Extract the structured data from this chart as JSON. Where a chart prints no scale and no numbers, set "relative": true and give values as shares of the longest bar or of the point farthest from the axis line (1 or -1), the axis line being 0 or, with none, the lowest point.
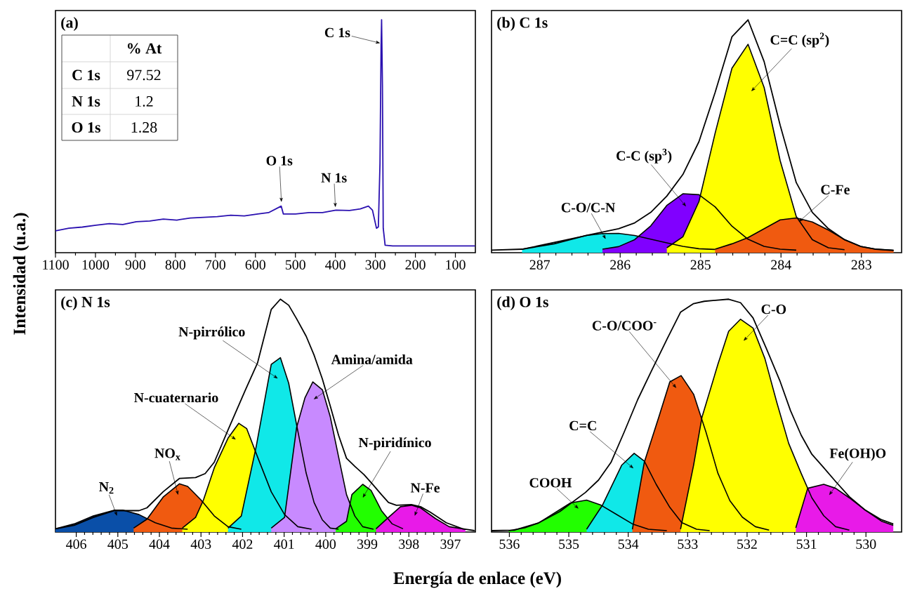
{
  "chart_data": [
    {
      "type": "line",
      "title": "(a)",
      "ylabel": "Intensidad (u.a.)",
      "relative": true,
      "xlim": [
        1100,
        50
      ],
      "xticks": [
        1100,
        1000,
        900,
        800,
        700,
        600,
        500,
        400,
        300,
        200,
        100
      ],
      "series": [
        {
          "color": "#2a10b0",
          "x": [
            1100,
            1066.5,
            1032.8,
            999.0,
            965.3,
            931.6,
            897.8,
            864.1,
            830.3,
            796.6,
            762.9,
            729.1,
            695.4,
            661.6,
            627.9,
            594.2,
            567.2,
            535.5,
            530.1,
            499.7,
            466.0,
            432.2,
            398.5,
            364.8,
            337.8,
            317.5,
            307.4,
            297.3,
            292.6,
            288.5,
            285.8,
            284.5,
            282.4,
            280.4,
            275.7,
            256.8,
            196.0,
            128.6,
            51.0
          ],
          "values": [
            0.094,
            0.105,
            0.11,
            0.118,
            0.125,
            0.121,
            0.133,
            0.136,
            0.144,
            0.14,
            0.149,
            0.152,
            0.155,
            0.161,
            0.158,
            0.166,
            0.172,
            0.2,
            0.166,
            0.166,
            0.172,
            0.172,
            0.183,
            0.181,
            0.188,
            0.2,
            0.183,
            0.105,
            0.111,
            0.384,
            0.887,
            1.0,
            0.72,
            0.105,
            0.032,
            0.029,
            0.029,
            0.029,
            0.029
          ]
        }
      ],
      "annotations": [
        "C 1s",
        "O 1s",
        "N 1s"
      ]
    },
    {
      "type": "other",
      "title": "% At",
      "categories": [
        "C 1s",
        "N 1s",
        "O 1s"
      ],
      "values": [
        97.52,
        1.2,
        1.28
      ],
      "data_labels": true
    },
    {
      "type": "area",
      "title": "(b) C 1s",
      "relative": true,
      "xlim": [
        287.6,
        282.5
      ],
      "xticks": [
        287,
        286,
        285,
        284,
        283
      ],
      "series": [
        {
          "color": "#10e8e8",
          "x": [
            287.22,
            286.82,
            286.42,
            286.22,
            286.02,
            285.82,
            285.62,
            285.42,
            285.22,
            285.02,
            284.82
          ],
          "values": [
            0.015,
            0.044,
            0.074,
            0.082,
            0.083,
            0.074,
            0.058,
            0.042,
            0.027,
            0.017,
            0.014
          ]
        },
        {
          "color": "#8000ff",
          "x": [
            286.22,
            286.02,
            285.82,
            285.62,
            285.42,
            285.22,
            285.02,
            284.82,
            284.61,
            284.41,
            284.21,
            284.01,
            283.81
          ],
          "values": [
            0.015,
            0.026,
            0.056,
            0.115,
            0.203,
            0.253,
            0.249,
            0.197,
            0.114,
            0.058,
            0.027,
            0.015,
            0.011
          ]
        },
        {
          "color": "#ffff00",
          "x": [
            285.42,
            285.22,
            285.02,
            284.82,
            284.61,
            284.41,
            284.21,
            284.01,
            283.81,
            283.61,
            283.41,
            283.21
          ],
          "values": [
            0.021,
            0.068,
            0.22,
            0.512,
            0.792,
            0.895,
            0.71,
            0.395,
            0.155,
            0.056,
            0.021,
            0.013
          ]
        },
        {
          "color": "#f05a10",
          "x": [
            284.82,
            284.61,
            284.41,
            284.21,
            284.01,
            283.81,
            283.61,
            283.41,
            283.21,
            283.01,
            282.82,
            282.6
          ],
          "values": [
            0.015,
            0.038,
            0.065,
            0.103,
            0.141,
            0.149,
            0.132,
            0.097,
            0.056,
            0.027,
            0.015,
            0.011
          ]
        },
        {
          "type": "line",
          "color": "#000000",
          "x": [
            287.6,
            287.22,
            286.82,
            286.42,
            286.02,
            285.82,
            285.62,
            285.42,
            285.22,
            285.02,
            284.82,
            284.61,
            284.41,
            284.21,
            284.01,
            283.81,
            283.61,
            283.41,
            283.21,
            283.01,
            282.82,
            282.6
          ],
          "values": [
            0.011,
            0.015,
            0.038,
            0.074,
            0.103,
            0.128,
            0.173,
            0.243,
            0.336,
            0.477,
            0.687,
            0.927,
            1.0,
            0.821,
            0.547,
            0.301,
            0.173,
            0.103,
            0.056,
            0.027,
            0.015,
            0.009
          ]
        }
      ],
      "annotations": [
        "C-O/C-N",
        "C-C (sp$^{3}$)",
        "C=C (sp$^{2}$)",
        "C-Fe"
      ]
    },
    {
      "type": "area",
      "title": "(c) N 1s",
      "xlabel": "Energía de enlace (eV)",
      "relative": true,
      "xlim": [
        406.5,
        396.4
      ],
      "xticks": [
        406,
        405,
        404,
        403,
        402,
        401,
        400,
        399,
        398,
        397
      ],
      "series": [
        {
          "color": "#0a4fa8",
          "x": [
            406.5,
            406.05,
            405.59,
            405.08,
            404.88,
            404.49,
            404.1,
            403.71,
            403.32
          ],
          "values": [
            0.014,
            0.035,
            0.069,
            0.094,
            0.094,
            0.075,
            0.04,
            0.017,
            0.012
          ]
        },
        {
          "color": "#f05a10",
          "x": [
            404.62,
            404.3,
            403.91,
            403.52,
            403.32,
            403.0,
            402.68,
            402.35,
            402.03
          ],
          "values": [
            0.017,
            0.055,
            0.15,
            0.207,
            0.196,
            0.138,
            0.069,
            0.023,
            0.012
          ]
        },
        {
          "color": "#ffff00",
          "x": [
            403.45,
            403.13,
            402.94,
            402.68,
            402.35,
            402.09,
            401.9,
            401.64,
            401.31,
            400.99,
            400.67,
            400.34
          ],
          "values": [
            0.017,
            0.063,
            0.138,
            0.276,
            0.403,
            0.467,
            0.444,
            0.323,
            0.173,
            0.075,
            0.023,
            0.012
          ]
        },
        {
          "color": "#10e8e8",
          "x": [
            402.35,
            402.03,
            401.67,
            401.31,
            401.09,
            400.89,
            400.7,
            400.47,
            400.28,
            400.08,
            399.89,
            399.69
          ],
          "values": [
            0.017,
            0.069,
            0.369,
            0.72,
            0.749,
            0.639,
            0.461,
            0.253,
            0.127,
            0.052,
            0.017,
            0.012
          ]
        },
        {
          "color": "#c88aff",
          "x": [
            401.31,
            400.99,
            400.7,
            400.5,
            400.31,
            400.08,
            399.89,
            399.69,
            399.5,
            399.3,
            399.11,
            398.85
          ],
          "values": [
            0.017,
            0.063,
            0.449,
            0.576,
            0.645,
            0.611,
            0.495,
            0.323,
            0.161,
            0.069,
            0.023,
            0.012
          ]
        },
        {
          "color": "#22ff00",
          "x": [
            399.76,
            399.5,
            399.37,
            399.11,
            398.91,
            398.66,
            398.4,
            398.14
          ],
          "values": [
            0.014,
            0.046,
            0.161,
            0.205,
            0.179,
            0.092,
            0.035,
            0.014
          ]
        },
        {
          "color": "#e81ae8",
          "x": [
            398.79,
            398.49,
            398.2,
            397.94,
            397.72,
            397.36,
            397.03,
            396.64
          ],
          "values": [
            0.014,
            0.063,
            0.109,
            0.115,
            0.104,
            0.058,
            0.023,
            0.012
          ]
        },
        {
          "type": "line",
          "color": "#000000",
          "x": [
            406.5,
            406.05,
            405.59,
            405.08,
            404.49,
            404.3,
            403.91,
            403.52,
            403.13,
            402.9,
            402.68,
            402.35,
            401.93,
            401.64,
            401.31,
            401.09,
            400.89,
            400.7,
            400.47,
            400.28,
            400.08,
            399.89,
            399.69,
            399.5,
            399.3,
            399.08,
            398.88,
            398.66,
            398.49,
            398.3,
            397.94,
            397.72,
            397.49,
            397.1,
            396.71,
            396.42
          ],
          "values": [
            0.014,
            0.029,
            0.063,
            0.092,
            0.092,
            0.104,
            0.173,
            0.23,
            0.234,
            0.251,
            0.3,
            0.438,
            0.611,
            0.726,
            0.956,
            1.0,
            0.974,
            0.916,
            0.841,
            0.76,
            0.657,
            0.541,
            0.415,
            0.317,
            0.282,
            0.247,
            0.207,
            0.161,
            0.127,
            0.115,
            0.118,
            0.109,
            0.086,
            0.04,
            0.014,
            0.006
          ]
        }
      ],
      "annotations": [
        "N$_{2}$",
        "NO$_{x}$",
        "N-cuaternario",
        "N-pirrólico",
        "Amina/amida",
        "N-piridínico",
        "N-Fe"
      ]
    },
    {
      "type": "area",
      "title": "(d) O 1s",
      "relative": true,
      "xlim": [
        536.3,
        529.4
      ],
      "xticks": [
        536,
        535,
        534,
        533,
        532,
        531,
        530
      ],
      "series": [
        {
          "color": "#22ff00",
          "x": [
            536.01,
            535.74,
            535.51,
            535.24,
            534.97,
            534.7,
            534.47,
            534.2,
            533.93,
            533.66,
            533.35
          ],
          "values": [
            0.006,
            0.018,
            0.039,
            0.082,
            0.125,
            0.137,
            0.117,
            0.076,
            0.035,
            0.012,
            0.006
          ]
        },
        {
          "color": "#10e8e8",
          "x": [
            534.7,
            534.43,
            534.11,
            533.9,
            533.73,
            533.53,
            533.3,
            533.1,
            532.85,
            532.63
          ],
          "values": [
            0.012,
            0.117,
            0.287,
            0.338,
            0.305,
            0.205,
            0.106,
            0.041,
            0.012,
            0.006
          ]
        },
        {
          "color": "#f05a10",
          "x": [
            533.93,
            533.73,
            533.48,
            533.3,
            533.11,
            532.9,
            532.69,
            532.49,
            532.29,
            532.08,
            531.86,
            531.63
          ],
          "values": [
            0.012,
            0.299,
            0.498,
            0.645,
            0.672,
            0.592,
            0.428,
            0.252,
            0.135,
            0.064,
            0.023,
            0.008
          ]
        },
        {
          "color": "#ffff00",
          "x": [
            533.12,
            532.9,
            532.76,
            532.49,
            532.31,
            532.11,
            531.9,
            531.7,
            531.5,
            531.3,
            531.09,
            530.91,
            530.71,
            530.51,
            530.28
          ],
          "values": [
            0.012,
            0.287,
            0.492,
            0.721,
            0.862,
            0.914,
            0.876,
            0.745,
            0.557,
            0.381,
            0.252,
            0.147,
            0.07,
            0.023,
            0.008
          ]
        },
        {
          "color": "#e81ae8",
          "x": [
            531.18,
            530.98,
            530.71,
            530.51,
            530.28,
            530.01,
            529.74,
            529.54
          ],
          "values": [
            0.018,
            0.188,
            0.205,
            0.188,
            0.147,
            0.094,
            0.047,
            0.029
          ]
        },
        {
          "type": "line",
          "color": "#000000",
          "x": [
            536.3,
            535.92,
            535.51,
            535.15,
            534.72,
            534.5,
            534.29,
            534.07,
            533.84,
            533.62,
            533.35,
            533.12,
            532.9,
            532.72,
            532.31,
            532.11,
            531.9,
            531.68,
            531.45,
            531.27,
            531.09,
            530.91,
            530.73,
            530.51,
            530.28,
            530.01,
            529.74,
            529.54
          ],
          "values": [
            0.006,
            0.008,
            0.039,
            0.088,
            0.17,
            0.223,
            0.299,
            0.428,
            0.569,
            0.686,
            0.827,
            0.944,
            0.981,
            0.991,
            1.0,
            0.985,
            0.92,
            0.791,
            0.651,
            0.522,
            0.416,
            0.334,
            0.282,
            0.217,
            0.152,
            0.094,
            0.053,
            0.035
          ]
        }
      ],
      "annotations": [
        "COOH",
        "C=C",
        "C-O/COO$^{-}$",
        "C-O",
        "Fe(OH)O"
      ]
    }
  ]
}
